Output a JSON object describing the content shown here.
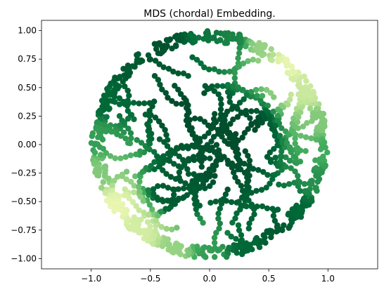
{
  "chart_data": {
    "type": "scatter",
    "title": "MDS (chordal) Embedding.",
    "xlabel": "",
    "ylabel": "",
    "xlim": [
      -1.42,
      1.42
    ],
    "ylim": [
      -1.09,
      1.09
    ],
    "xticks": [
      -1.0,
      -0.5,
      0.0,
      0.5,
      1.0
    ],
    "xtick_labels": [
      "−1.0",
      "−0.5",
      "0.0",
      "0.5",
      "1.0"
    ],
    "yticks": [
      1.0,
      0.75,
      0.5,
      0.25,
      0.0,
      -0.25,
      -0.5,
      -0.75,
      -1.0
    ],
    "ytick_labels": [
      "1.00",
      "0.75",
      "0.50",
      "0.25",
      "0.00",
      "−0.25",
      "−0.50",
      "−0.75",
      "−1.00"
    ],
    "grid": false,
    "colormap": [
      "#f7fcb9",
      "#addd8e",
      "#41ab5d",
      "#006837",
      "#004529"
    ],
    "point_count": 1500,
    "points": [
      {
        "x": 0.0,
        "y": 0.98,
        "c": 0.7
      },
      {
        "x": 0.2,
        "y": 0.95,
        "c": 0.65
      },
      {
        "x": 0.45,
        "y": 0.9,
        "c": 0.3
      },
      {
        "x": 0.7,
        "y": 0.75,
        "c": 0.05
      },
      {
        "x": 0.85,
        "y": 0.5,
        "c": 0.15
      },
      {
        "x": 0.95,
        "y": 0.2,
        "c": 0.35
      },
      {
        "x": 1.0,
        "y": -0.05,
        "c": 0.5
      },
      {
        "x": 0.95,
        "y": -0.35,
        "c": 0.6
      },
      {
        "x": 0.8,
        "y": -0.6,
        "c": 0.75
      },
      {
        "x": 0.6,
        "y": -0.8,
        "c": 0.85
      },
      {
        "x": 0.3,
        "y": -0.95,
        "c": 0.75
      },
      {
        "x": 0.0,
        "y": -0.99,
        "c": 0.55
      },
      {
        "x": -0.3,
        "y": -0.95,
        "c": 0.3
      },
      {
        "x": -0.6,
        "y": -0.8,
        "c": 0.12
      },
      {
        "x": -0.82,
        "y": -0.55,
        "c": 0.05
      },
      {
        "x": -0.95,
        "y": -0.25,
        "c": 0.35
      },
      {
        "x": -0.98,
        "y": 0.05,
        "c": 0.55
      },
      {
        "x": -0.9,
        "y": 0.4,
        "c": 0.75
      },
      {
        "x": -0.7,
        "y": 0.7,
        "c": 0.85
      },
      {
        "x": -0.4,
        "y": 0.9,
        "c": 0.9
      },
      {
        "x": -0.2,
        "y": 0.3,
        "c": 0.95
      },
      {
        "x": 0.3,
        "y": 0.1,
        "c": 0.95
      },
      {
        "x": 0.1,
        "y": -0.2,
        "c": 0.92
      },
      {
        "x": -0.3,
        "y": -0.4,
        "c": 0.85
      }
    ]
  }
}
